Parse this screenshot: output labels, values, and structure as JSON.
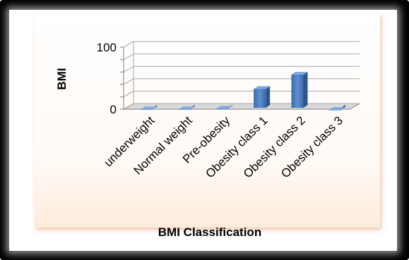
{
  "chart_data": {
    "type": "bar",
    "title": "",
    "xlabel": "BMI Classification",
    "ylabel": "BMI",
    "categories": [
      "underweight",
      "Normal weight",
      "Pre-obesity",
      "Obesity class 1",
      "Obesity class 2",
      "Obesity class 3"
    ],
    "values": [
      2,
      2,
      3,
      35,
      58,
      1
    ],
    "ylim": [
      0,
      100
    ],
    "yticks": [
      "0",
      "100"
    ],
    "grid": true,
    "legend": "none",
    "bar_color": "#4f81bd"
  }
}
